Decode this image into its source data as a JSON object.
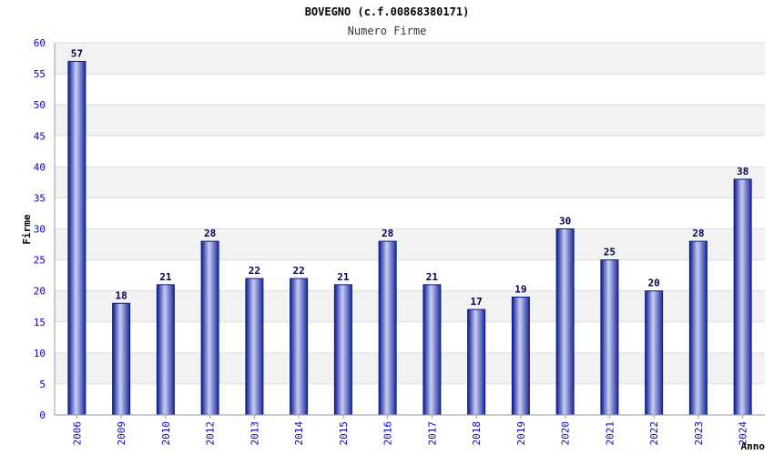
{
  "chart_data": {
    "type": "bar",
    "title": "BOVEGNO (c.f.00868380171)",
    "subtitle": "Numero Firme",
    "xlabel": "Anno",
    "ylabel": "Firme",
    "categories": [
      "2006",
      "2009",
      "2010",
      "2012",
      "2013",
      "2014",
      "2015",
      "2016",
      "2017",
      "2018",
      "2019",
      "2020",
      "2021",
      "2022",
      "2023",
      "2024"
    ],
    "values": [
      57,
      18,
      21,
      28,
      22,
      22,
      21,
      28,
      21,
      17,
      19,
      30,
      25,
      20,
      28,
      38
    ],
    "ylim": [
      0,
      60
    ],
    "yticks": [
      0,
      5,
      10,
      15,
      20,
      25,
      30,
      35,
      40,
      45,
      50,
      55,
      60
    ],
    "grid": true,
    "colors": {
      "bar_edge": "#0a1a8c",
      "bar_mid": "#c8cef5",
      "bar_dark": "#1a2a9a",
      "tick_label": "#0000c0",
      "data_label": "#000050",
      "band": "#f2f2f2",
      "grid": "#dcdcdc"
    }
  }
}
